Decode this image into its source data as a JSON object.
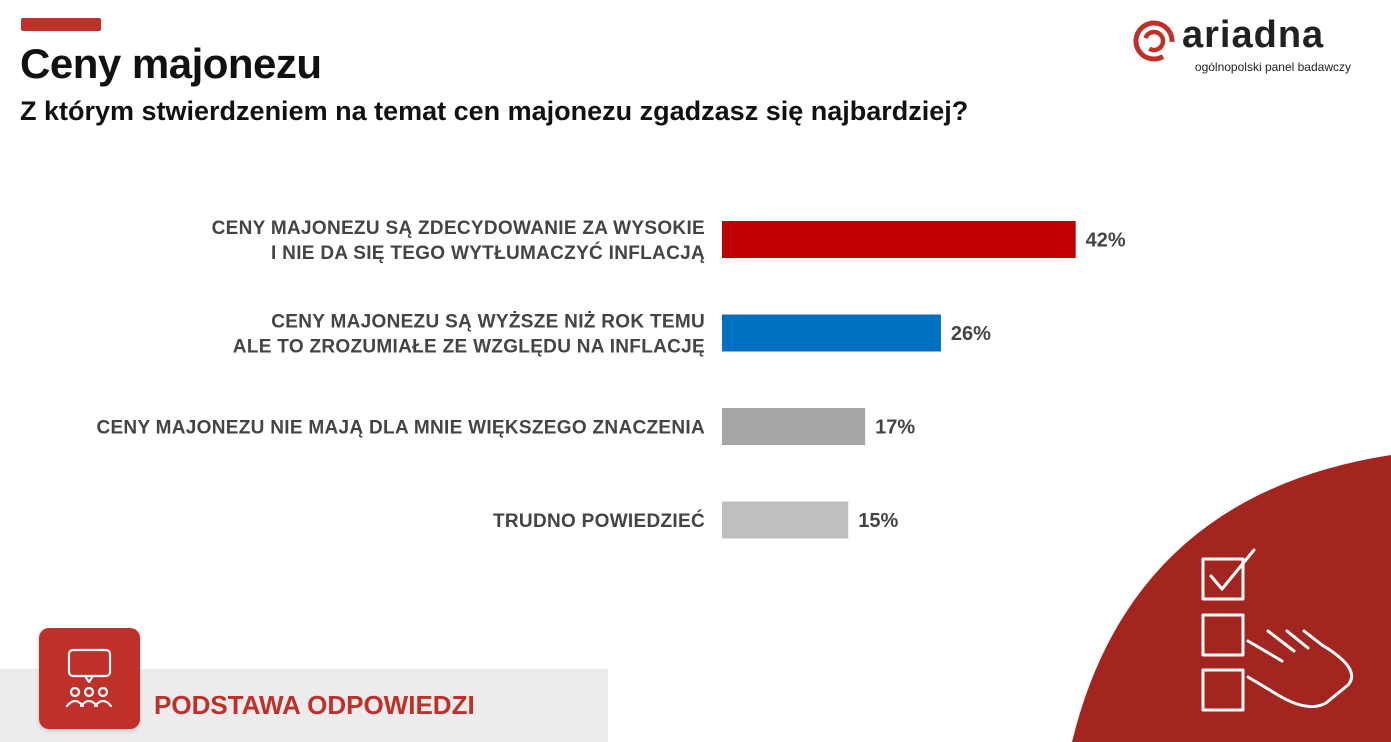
{
  "header": {
    "title": "Ceny majonezu",
    "subtitle": "Z którym stwierdzeniem na temat cen majonezu zgadzasz się najbardziej?"
  },
  "logo": {
    "wordmark": "ariadna",
    "tagline": "ogólnopolski panel badawczy"
  },
  "chart_data": {
    "type": "bar",
    "orientation": "horizontal",
    "categories": [
      [
        "CENY MAJONEZU  SĄ ZDECYDOWANIE  ZA WYSOKIE",
        "I NIE DA SIĘ TEGO  WYTŁUMACZYĆ  INFLACJĄ"
      ],
      [
        "CENY MAJONEZU  SĄ WYŻSZE NIŻ ROK TEMU",
        "ALE TO ZROZUMIAŁE  ZE WZGLĘDU NA INFLACJĘ"
      ],
      [
        "CENY MAJONEZU  NIE MAJĄ  DLA MNIE WIĘKSZEGO  ZNACZENIA"
      ],
      [
        "TRUDNO POWIEDZIEĆ"
      ]
    ],
    "values": [
      42,
      26,
      17,
      15
    ],
    "value_labels": [
      "42%",
      "26%",
      "17%",
      "15%"
    ],
    "unit": "%",
    "colors": [
      "#c00000",
      "#0070c0",
      "#a6a6a6",
      "#bfbfbf"
    ],
    "xlim": [
      0,
      100
    ],
    "grid": false,
    "legend": "none"
  },
  "footer": {
    "label": "PODSTAWA ODPOWIEDZI",
    "icon": "chat-audience-icon"
  },
  "decoration": {
    "icon": "checklist-hand-icon"
  },
  "colors": {
    "accent": "#c0302a",
    "corner": "#a3251f"
  }
}
